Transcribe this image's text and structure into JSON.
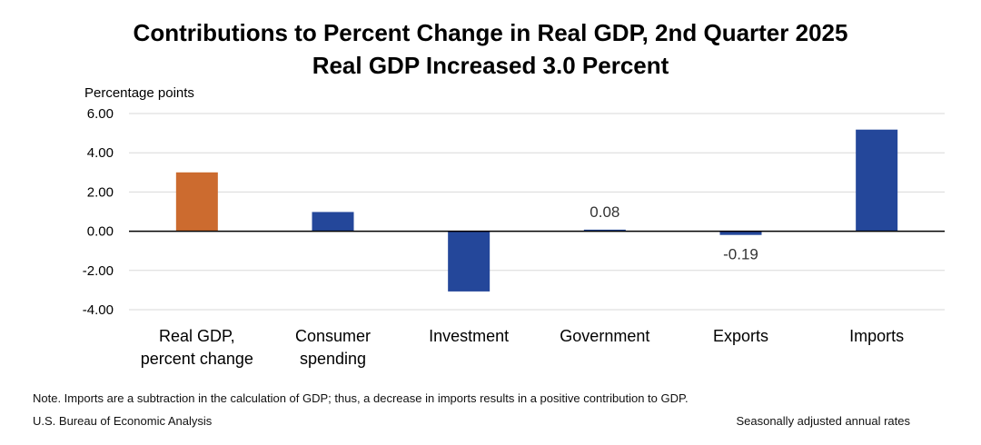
{
  "header": {
    "title": "Contributions to Percent Change in Real GDP, 2nd Quarter 2025",
    "subtitle": "Real GDP Increased 3.0 Percent"
  },
  "footer": {
    "note": "Note. Imports are a subtraction in the calculation of GDP; thus, a decrease in imports results in a positive contribution to GDP.",
    "source": "U.S. Bureau of Economic Analysis",
    "seasonal": "Seasonally adjusted annual rates"
  },
  "colors": {
    "highlight": "#CC6B2F",
    "bar": "#24479A",
    "grid": "#D9D9D9",
    "zero_line": "#000000"
  },
  "chart_data": {
    "type": "bar",
    "title": "Contributions to Percent Change in Real GDP, 2nd Quarter 2025",
    "subtitle": "Real GDP Increased 3.0 Percent",
    "ylabel": "Percentage points",
    "xlabel": "",
    "ylim": [
      -4,
      6
    ],
    "yticks": [
      6,
      4,
      2,
      0,
      -2,
      -4
    ],
    "ytick_labels": [
      "6.00",
      "4.00",
      "2.00",
      "0.00",
      "-2.00",
      "-4.00"
    ],
    "grid": true,
    "categories": [
      [
        "Real GDP,",
        "percent change"
      ],
      [
        "Consumer",
        "spending"
      ],
      [
        "Investment"
      ],
      [
        "Government"
      ],
      [
        "Exports"
      ],
      [
        "Imports"
      ]
    ],
    "values": [
      3.0,
      0.98,
      -3.07,
      0.08,
      -0.19,
      5.18
    ],
    "bar_colors": [
      "#CC6B2F",
      "#24479A",
      "#24479A",
      "#24479A",
      "#24479A",
      "#24479A"
    ],
    "data_labels": [
      "",
      "",
      "",
      "0.08",
      "",
      ""
    ],
    "data_labels_below": [
      "",
      "",
      "",
      "",
      "-0.19",
      ""
    ]
  }
}
